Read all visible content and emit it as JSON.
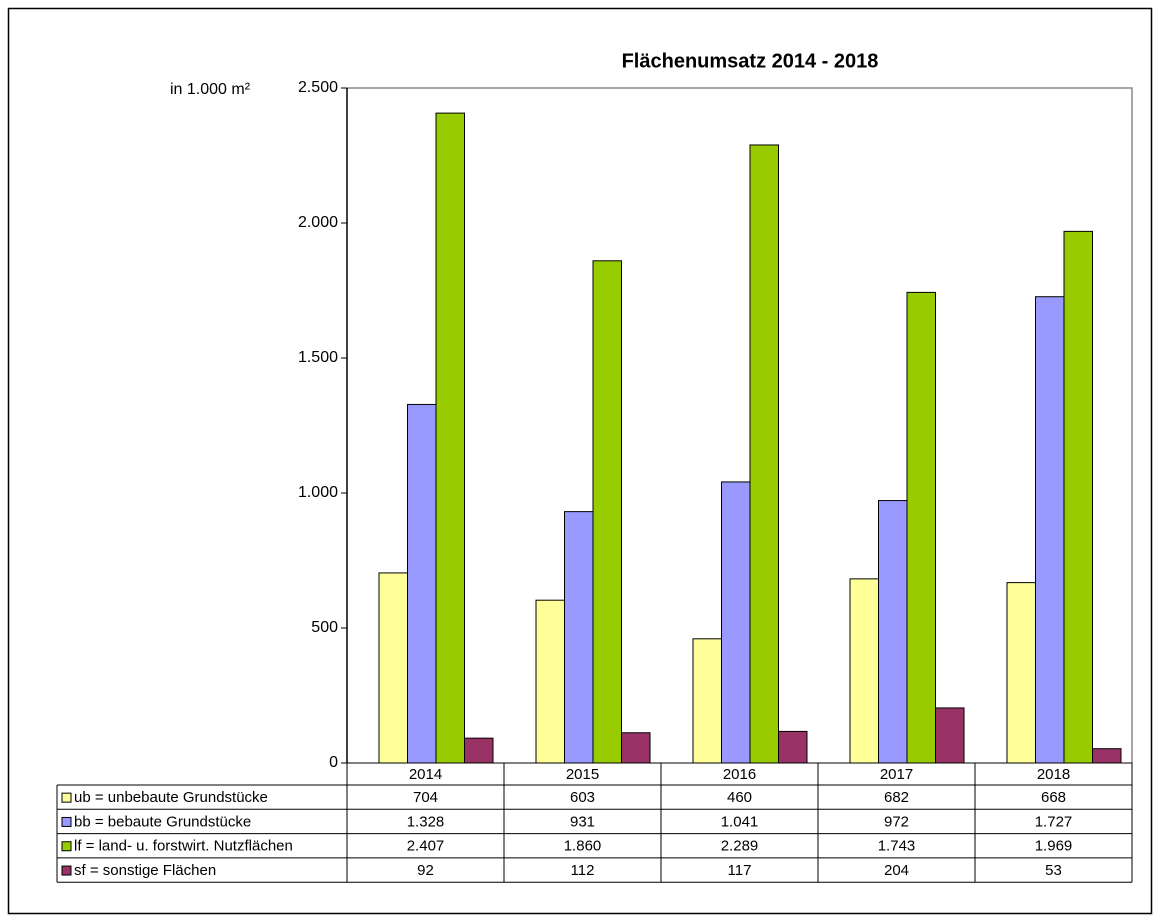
{
  "chart_data": {
    "type": "bar",
    "title": "Flächenumsatz 2014 -  2018",
    "y_label": "in 1.000 m²",
    "categories": [
      "2014",
      "2015",
      "2016",
      "2017",
      "2018"
    ],
    "series": [
      {
        "name": "ub = unbebaute Grundstücke",
        "color": "#ffff99",
        "values": [
          704,
          603,
          460,
          682,
          668
        ]
      },
      {
        "name": "bb = bebaute Grundstücke",
        "color": "#9999ff",
        "values": [
          1328,
          931,
          1041,
          972,
          1727
        ],
        "value_labels": [
          "1.328",
          "931",
          "1.041",
          "972",
          "1.727"
        ]
      },
      {
        "name": "lf = land- u. forstwirt. Nutzflächen",
        "color": "#99cc00",
        "values": [
          2407,
          1860,
          2289,
          1743,
          1969
        ],
        "value_labels": [
          "2.407",
          "1.860",
          "2.289",
          "1.743",
          "1.969"
        ]
      },
      {
        "name": "sf = sonstige Flächen",
        "color": "#993366",
        "values": [
          92,
          112,
          117,
          204,
          53
        ]
      }
    ],
    "ylim": [
      0,
      2500
    ],
    "yticks": [
      0,
      500,
      {
        "value": 1000,
        "label": "1.000"
      },
      {
        "value": 1500,
        "label": "1.500"
      },
      {
        "value": 2000,
        "label": "2.000"
      },
      {
        "value": 2500,
        "label": "2.500"
      }
    ]
  }
}
